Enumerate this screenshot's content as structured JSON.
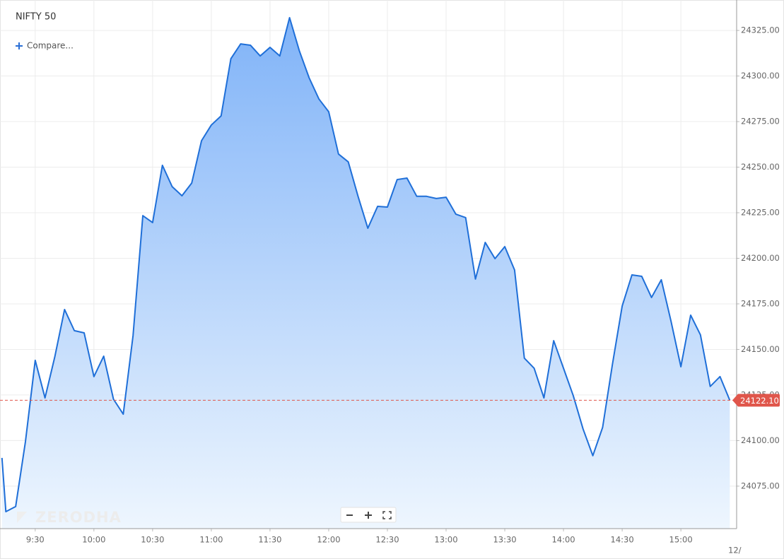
{
  "chart_data": {
    "type": "area",
    "title": "NIFTY 50",
    "compare_label": "Compare...",
    "watermark": "ZERODHA",
    "edge_label": "12/",
    "color": "#1f6fd8",
    "grid": true,
    "x": [
      553,
      555,
      560,
      565,
      570,
      575,
      580,
      585,
      590,
      595,
      600,
      605,
      610,
      615,
      620,
      625,
      630,
      635,
      640,
      645,
      650,
      655,
      660,
      665,
      670,
      675,
      680,
      685,
      690,
      695,
      700,
      705,
      710,
      715,
      720,
      725,
      730,
      735,
      740,
      745,
      750,
      755,
      760,
      765,
      770,
      775,
      780,
      785,
      790,
      795,
      800,
      805,
      810,
      815,
      820,
      825,
      830,
      835,
      840,
      845,
      850,
      855,
      860,
      865,
      870,
      875,
      880,
      885,
      890,
      895,
      900,
      905,
      910,
      915,
      920,
      925
    ],
    "values": [
      24090.5,
      24061.0,
      24063.8,
      24099.4,
      24144.0,
      24123.4,
      24145.9,
      24171.9,
      24160.3,
      24159.1,
      24135.1,
      24146.3,
      24122.7,
      24114.5,
      24157.6,
      24223.4,
      24219.6,
      24251.0,
      24239.3,
      24234.3,
      24241.3,
      24264.5,
      24273.1,
      24278.1,
      24309.5,
      24317.6,
      24316.9,
      24311.0,
      24315.7,
      24311.0,
      24332.0,
      24313.8,
      24299.0,
      24287.4,
      24280.4,
      24257.2,
      24252.9,
      24234.0,
      24216.5,
      24228.5,
      24228.1,
      24243.2,
      24244.0,
      24234.0,
      24234.0,
      24232.8,
      24233.5,
      24224.2,
      24222.3,
      24188.6,
      24208.7,
      24199.8,
      24206.4,
      24193.6,
      24145.2,
      24139.7,
      24123.4,
      24154.8,
      24139.7,
      24124.6,
      24106.4,
      24091.7,
      24107.2,
      24141.7,
      24173.8,
      24190.9,
      24190.1,
      24178.5,
      24188.2,
      24165.3,
      24140.5,
      24168.8,
      24158.0,
      24129.7,
      24135.1,
      24122.1
    ],
    "xlim": [
      552,
      928.5
    ],
    "xticks": [
      {
        "value": 570,
        "label": "9:30"
      },
      {
        "value": 600,
        "label": "10:00"
      },
      {
        "value": 630,
        "label": "10:30"
      },
      {
        "value": 660,
        "label": "11:00"
      },
      {
        "value": 690,
        "label": "11:30"
      },
      {
        "value": 720,
        "label": "12:00"
      },
      {
        "value": 750,
        "label": "12:30"
      },
      {
        "value": 780,
        "label": "13:00"
      },
      {
        "value": 810,
        "label": "13:30"
      },
      {
        "value": 840,
        "label": "14:00"
      },
      {
        "value": 870,
        "label": "14:30"
      },
      {
        "value": 900,
        "label": "15:00"
      }
    ],
    "ylim": [
      24051.7,
      24341.7
    ],
    "yticks": [
      {
        "value": 24075,
        "label": "24075.00"
      },
      {
        "value": 24100,
        "label": "24100.00"
      },
      {
        "value": 24125,
        "label": "24125.00"
      },
      {
        "value": 24150,
        "label": "24150.00"
      },
      {
        "value": 24175,
        "label": "24175.00"
      },
      {
        "value": 24200,
        "label": "24200.00"
      },
      {
        "value": 24225,
        "label": "24225.00"
      },
      {
        "value": 24250,
        "label": "24250.00"
      },
      {
        "value": 24275,
        "label": "24275.00"
      },
      {
        "value": 24300,
        "label": "24300.00"
      },
      {
        "value": 24325,
        "label": "24325.00"
      }
    ],
    "last_price": {
      "value": 24122.1,
      "label": "24122.10"
    }
  }
}
